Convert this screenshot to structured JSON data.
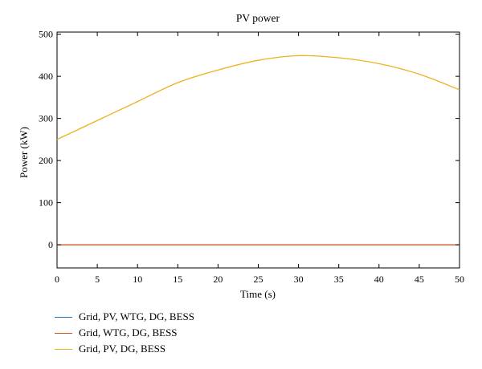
{
  "chart_data": {
    "type": "line",
    "title": "PV power",
    "xlabel": "Time (s)",
    "ylabel": "Power (kW)",
    "xlim": [
      0,
      50
    ],
    "ylim": [
      -55,
      505
    ],
    "xticks": [
      0,
      5,
      10,
      15,
      20,
      25,
      30,
      35,
      40,
      45,
      50
    ],
    "yticks": [
      0,
      100,
      200,
      300,
      400,
      500
    ],
    "grid": false,
    "legend_position": "bottom-left",
    "series": [
      {
        "name": "Grid, PV, WTG, DG, BESS",
        "color": "#1f77b4",
        "x": [
          0,
          50
        ],
        "y": [
          0,
          0
        ]
      },
      {
        "name": "Grid, WTG, DG, BESS",
        "color": "#d95319",
        "x": [
          0,
          50
        ],
        "y": [
          0,
          0
        ]
      },
      {
        "name": "Grid, PV, DG, BESS",
        "color": "#edb120",
        "x": [
          0,
          5,
          10,
          15,
          20,
          25,
          30,
          35,
          40,
          45,
          50
        ],
        "y": [
          250,
          295,
          340,
          385,
          415,
          438,
          449,
          444,
          430,
          405,
          368
        ]
      }
    ]
  }
}
